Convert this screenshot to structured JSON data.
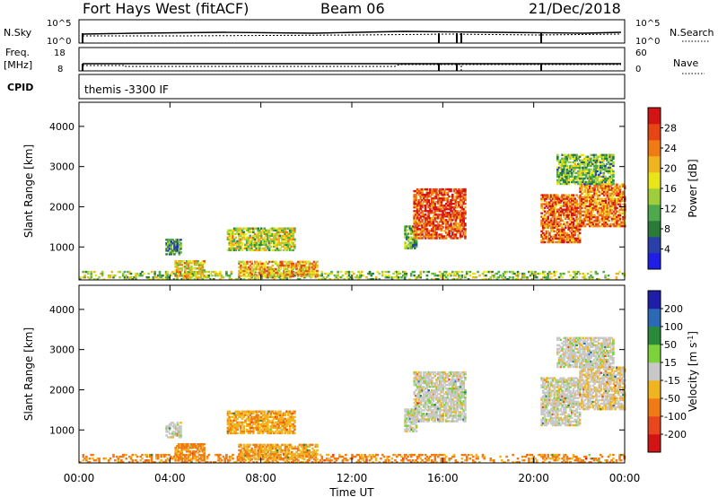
{
  "header": {
    "radar": "Fort Hays West (fitACF)",
    "beam": "Beam 06",
    "date": "21/Dec/2018"
  },
  "status": {
    "left_top_label": "N.Sky",
    "left_top_ticks": [
      "10^5",
      "10^0"
    ],
    "right_top_label": "N.Search",
    "right_top_ticks": [
      "10^5",
      "10^0"
    ],
    "left_mid_label_1": "Freq.",
    "left_mid_label_2": "[MHz]",
    "left_mid_ticks": [
      "18",
      "8"
    ],
    "right_mid_label": "Nave",
    "right_mid_ticks": [
      "60",
      "0"
    ],
    "cpid_label": "CPID",
    "cpid_value": "themis -3300 IF"
  },
  "chart_data": [
    {
      "type": "heatmap",
      "name": "power",
      "ylabel": "Slant Range [km]",
      "ylim": [
        180,
        4600
      ],
      "yticks": [
        "1000",
        "2000",
        "3000",
        "4000"
      ],
      "colorbar": {
        "label": "Power [dB]",
        "range": [
          0,
          32
        ],
        "ticks": [
          "4",
          "8",
          "12",
          "16",
          "20",
          "24",
          "28"
        ],
        "colors": [
          "#1e1ee6",
          "#2a3fa8",
          "#2a7a3a",
          "#4ea84e",
          "#9ecf3a",
          "#e8e619",
          "#f0b41e",
          "#f07a14",
          "#e64614",
          "#d21414"
        ]
      },
      "regions": [
        {
          "t": [
            0.0,
            24.0
          ],
          "r": [
            180,
            400
          ],
          "level": 0.45
        },
        {
          "t": [
            3.8,
            4.5
          ],
          "r": [
            800,
            1200
          ],
          "level": 0.25
        },
        {
          "t": [
            4.2,
            5.5
          ],
          "r": [
            220,
            650
          ],
          "level": 0.6
        },
        {
          "t": [
            6.5,
            9.5
          ],
          "r": [
            900,
            1450
          ],
          "level": 0.5
        },
        {
          "t": [
            7.0,
            10.5
          ],
          "r": [
            250,
            650
          ],
          "level": 0.65
        },
        {
          "t": [
            14.3,
            14.8
          ],
          "r": [
            950,
            1500
          ],
          "level": 0.35
        },
        {
          "t": [
            14.7,
            17.0
          ],
          "r": [
            1200,
            2450
          ],
          "level": 0.85
        },
        {
          "t": [
            20.3,
            22.0
          ],
          "r": [
            1100,
            2300
          ],
          "level": 0.8
        },
        {
          "t": [
            22.0,
            24.0
          ],
          "r": [
            1500,
            2550
          ],
          "level": 0.75
        },
        {
          "t": [
            21.0,
            23.5
          ],
          "r": [
            2550,
            3300
          ],
          "level": 0.4
        }
      ]
    },
    {
      "type": "heatmap",
      "name": "velocity",
      "ylabel": "Slant Range [km]",
      "ylim": [
        180,
        4600
      ],
      "yticks": [
        "1000",
        "2000",
        "3000",
        "4000"
      ],
      "colorbar": {
        "label": "Velocity [m s^-1]",
        "range": [
          -240,
          240
        ],
        "ticks": [
          "200",
          "100",
          "50",
          "15",
          "-15",
          "-50",
          "-100",
          "-200"
        ],
        "colors": [
          "#d21414",
          "#e8461e",
          "#f07a14",
          "#f0b41e",
          "#c8c8c8",
          "#7cd23a",
          "#2a8a3a",
          "#2a6ab4",
          "#1e1ea8"
        ]
      },
      "regions": [
        {
          "t": [
            0.0,
            24.0
          ],
          "r": [
            180,
            400
          ],
          "v": -60
        },
        {
          "t": [
            3.8,
            4.5
          ],
          "r": [
            800,
            1200
          ],
          "v": 0
        },
        {
          "t": [
            4.2,
            5.5
          ],
          "r": [
            220,
            650
          ],
          "v": -60
        },
        {
          "t": [
            6.5,
            9.5
          ],
          "r": [
            900,
            1450
          ],
          "v": -40
        },
        {
          "t": [
            7.0,
            10.5
          ],
          "r": [
            250,
            650
          ],
          "v": -45
        },
        {
          "t": [
            14.3,
            14.8
          ],
          "r": [
            950,
            1500
          ],
          "v": 0
        },
        {
          "t": [
            14.7,
            17.0
          ],
          "r": [
            1200,
            2450
          ],
          "v": 0
        },
        {
          "t": [
            20.3,
            22.0
          ],
          "r": [
            1100,
            2300
          ],
          "v": 0
        },
        {
          "t": [
            22.0,
            24.0
          ],
          "r": [
            1500,
            2550
          ],
          "v": -10
        },
        {
          "t": [
            21.0,
            23.5
          ],
          "r": [
            2550,
            3300
          ],
          "v": 0
        }
      ]
    }
  ],
  "x_axis": {
    "label": "Time UT",
    "ticks": [
      "00:00",
      "04:00",
      "08:00",
      "12:00",
      "16:00",
      "20:00",
      "00:00"
    ]
  }
}
